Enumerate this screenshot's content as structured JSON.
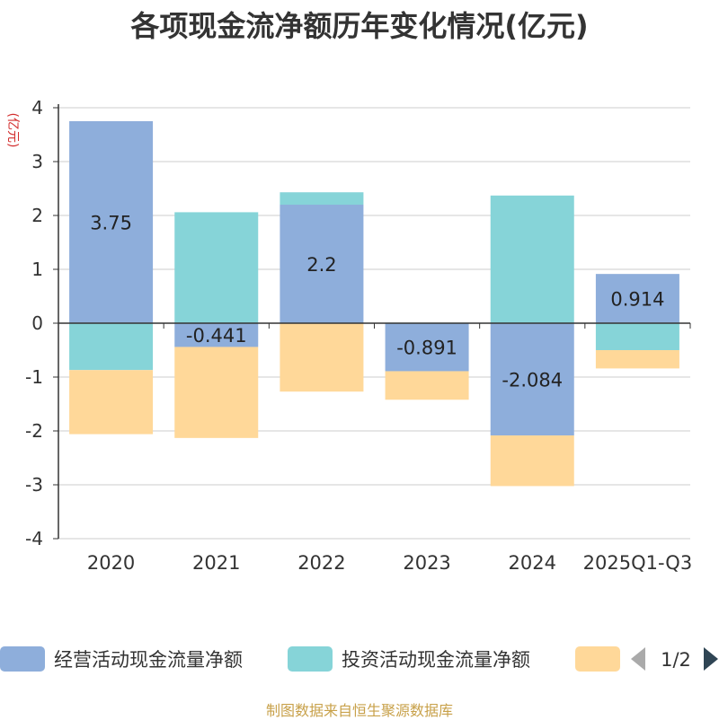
{
  "title": "各项现金流净额历年变化情况(亿元)",
  "footer": "制图数据来自恒生聚源数据库",
  "chart_data": {
    "type": "bar",
    "stacked": true,
    "ylabel": "(亿元)",
    "ylim": [
      -4,
      4
    ],
    "yticks": [
      "4",
      "3",
      "2",
      "1",
      "0",
      "-1",
      "-2",
      "-3",
      "-4"
    ],
    "categories": [
      "2020",
      "2021",
      "2022",
      "2023",
      "2024",
      "2025Q1-Q3"
    ],
    "series": [
      {
        "name": "经营活动现金流量净额",
        "color": "#8eaedb",
        "values": [
          3.75,
          -0.441,
          2.2,
          -0.891,
          -2.084,
          0.914
        ],
        "labels": [
          "3.75",
          "-0.441",
          "2.2",
          "-0.891",
          "-2.084",
          "0.914"
        ]
      },
      {
        "name": "投资活动现金流量净额",
        "color": "#86d4d8",
        "values": [
          -0.87,
          2.06,
          0.23,
          0.01,
          2.37,
          -0.5
        ]
      },
      {
        "name": "",
        "color": "#ffd899",
        "values": [
          -1.19,
          -1.69,
          -1.27,
          -0.53,
          -0.94,
          -0.34
        ]
      }
    ],
    "legend": {
      "page": "1/2"
    }
  }
}
